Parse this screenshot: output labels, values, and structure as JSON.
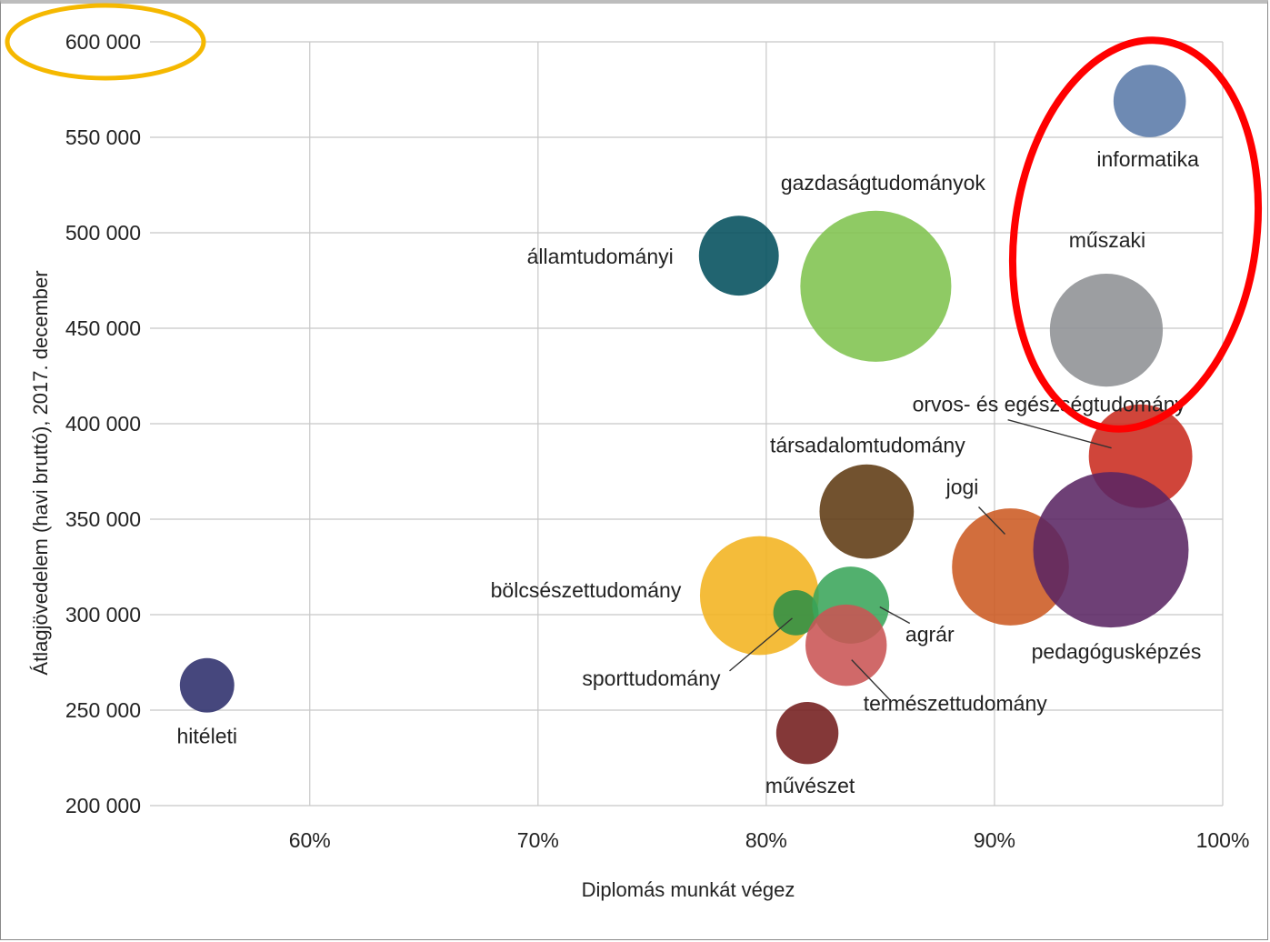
{
  "chart_data": {
    "type": "scatter",
    "subtype": "bubble",
    "xlabel": "Diplomás munkát végez",
    "ylabel": "Átlagjövedelem (havi bruttó), 2017. december",
    "xlim": [
      0.53,
      1.0
    ],
    "ylim": [
      200000,
      600000
    ],
    "x_ticks": [
      0.6,
      0.7,
      0.8,
      0.9,
      1.0
    ],
    "x_tick_labels": [
      "60%",
      "70%",
      "80%",
      "90%",
      "100%"
    ],
    "y_ticks": [
      200000,
      250000,
      300000,
      350000,
      400000,
      450000,
      500000,
      550000,
      600000
    ],
    "y_tick_labels": [
      "200 000",
      "250 000",
      "300 000",
      "350 000",
      "400 000",
      "450 000",
      "500 000",
      "550 000",
      "600 000"
    ],
    "grid": true,
    "points": [
      {
        "name": "hitéleti",
        "x": 0.555,
        "y": 263000,
        "size": 0.13,
        "color": "#2c2d6b"
      },
      {
        "name": "államtudományi",
        "x": 0.788,
        "y": 488000,
        "size": 0.28,
        "color": "#024e5c"
      },
      {
        "name": "gazdaságtudományok",
        "x": 0.848,
        "y": 472000,
        "size": 1.0,
        "color": "#80c34e"
      },
      {
        "name": "bölcsészettudomány",
        "x": 0.797,
        "y": 310000,
        "size": 0.62,
        "color": "#f2b31f"
      },
      {
        "name": "sporttudomány",
        "x": 0.813,
        "y": 301000,
        "size": 0.09,
        "color": "#2e8f45"
      },
      {
        "name": "agrár",
        "x": 0.837,
        "y": 305000,
        "size": 0.26,
        "color": "#3aa55a"
      },
      {
        "name": "természettudomány",
        "x": 0.835,
        "y": 284000,
        "size": 0.29,
        "color": "#c95454"
      },
      {
        "name": "művészet",
        "x": 0.818,
        "y": 238000,
        "size": 0.17,
        "color": "#731c1c"
      },
      {
        "name": "társadalomtudomány",
        "x": 0.844,
        "y": 354000,
        "size": 0.39,
        "color": "#5e3a12"
      },
      {
        "name": "jogi",
        "x": 0.907,
        "y": 325000,
        "size": 0.6,
        "color": "#cc5a22"
      },
      {
        "name": "orvos- és egészségtudomány",
        "x": 0.964,
        "y": 383000,
        "size": 0.47,
        "color": "#c92b1f"
      },
      {
        "name": "pedagógusképzés",
        "x": 0.951,
        "y": 334000,
        "size": 1.06,
        "color": "#5a2663"
      },
      {
        "name": "műszaki",
        "x": 0.949,
        "y": 449000,
        "size": 0.56,
        "color": "#8e9194"
      },
      {
        "name": "informatika",
        "x": 0.968,
        "y": 569000,
        "size": 0.23,
        "color": "#5a7aa8"
      }
    ]
  },
  "annotations": {
    "highlight_ellipse_colors": [
      "#f5b800",
      "#ff0000"
    ]
  }
}
